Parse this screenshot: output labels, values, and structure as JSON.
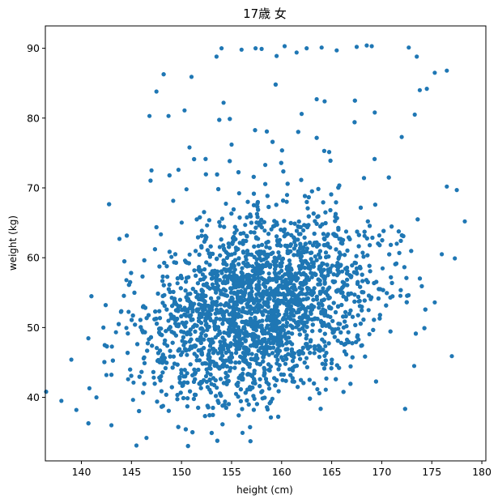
{
  "chart_data": {
    "type": "scatter",
    "title": "17歳 女",
    "xlabel": "height (cm)",
    "ylabel": "weight (kg)",
    "xlim": [
      136.4,
      180.4
    ],
    "ylim": [
      30.9,
      93.2
    ],
    "x_ticks": [
      140,
      145,
      150,
      155,
      160,
      165,
      170,
      175,
      180
    ],
    "y_ticks": [
      40,
      50,
      60,
      70,
      80,
      90
    ],
    "grid": false,
    "legend": "none",
    "marker_color": "#1f77b4",
    "series": [
      {
        "points_visible": [
          [
            138.0,
            39.5
          ],
          [
            139.5,
            38.2
          ],
          [
            139.0,
            45.4
          ],
          [
            140.8,
            41.3
          ],
          [
            141.5,
            40.0
          ],
          [
            142.2,
            50.0
          ],
          [
            142.5,
            43.2
          ],
          [
            143.0,
            36.0
          ],
          [
            143.8,
            62.7
          ],
          [
            144.5,
            56.8
          ],
          [
            145.5,
            33.1
          ],
          [
            146.5,
            34.2
          ],
          [
            146.8,
            80.3
          ],
          [
            147.5,
            83.8
          ],
          [
            148.7,
            80.3
          ],
          [
            150.3,
            81.1
          ],
          [
            150.8,
            75.8
          ],
          [
            151.0,
            85.9
          ],
          [
            153.5,
            88.8
          ],
          [
            154.0,
            90.0
          ],
          [
            156.0,
            89.8
          ],
          [
            157.4,
            90.0
          ],
          [
            158.0,
            89.9
          ],
          [
            159.5,
            88.9
          ],
          [
            160.3,
            90.3
          ],
          [
            161.5,
            89.4
          ],
          [
            162.5,
            90.0
          ],
          [
            164.0,
            90.1
          ],
          [
            165.5,
            89.7
          ],
          [
            167.5,
            90.2
          ],
          [
            168.5,
            90.4
          ],
          [
            169.0,
            90.3
          ],
          [
            172.7,
            90.1
          ],
          [
            173.5,
            88.8
          ],
          [
            173.8,
            84.0
          ],
          [
            174.5,
            84.2
          ],
          [
            175.3,
            86.5
          ],
          [
            176.5,
            86.8
          ],
          [
            173.3,
            80.5
          ],
          [
            172.0,
            77.3
          ],
          [
            176.5,
            70.2
          ],
          [
            177.5,
            69.7
          ],
          [
            178.3,
            65.2
          ],
          [
            177.3,
            59.9
          ],
          [
            176.0,
            60.5
          ],
          [
            175.3,
            53.6
          ],
          [
            177.0,
            45.9
          ],
          [
            171.5,
            62.0
          ],
          [
            163.5,
            82.7
          ],
          [
            164.3,
            82.4
          ],
          [
            162.0,
            80.6
          ],
          [
            169.3,
            80.8
          ],
          [
            154.2,
            82.2
          ],
          [
            155.0,
            76.2
          ],
          [
            147.0,
            72.5
          ],
          [
            149.7,
            72.6
          ],
          [
            150.5,
            69.8
          ]
        ]
      }
    ]
  }
}
